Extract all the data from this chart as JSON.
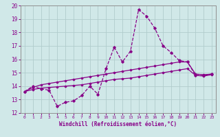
{
  "xlabel": "Windchill (Refroidissement éolien,°C)",
  "ylabel": "",
  "xlim": [
    -0.5,
    23.5
  ],
  "ylim": [
    12,
    20
  ],
  "xticks": [
    0,
    1,
    2,
    3,
    4,
    5,
    6,
    7,
    8,
    9,
    10,
    11,
    12,
    13,
    14,
    15,
    16,
    17,
    18,
    19,
    20,
    21,
    22,
    23
  ],
  "yticks": [
    12,
    13,
    14,
    15,
    16,
    17,
    18,
    19,
    20
  ],
  "background_color": "#d0e8e8",
  "line_color": "#880088",
  "grid_color": "#b0cccc",
  "series": {
    "main": {
      "x": [
        0,
        1,
        2,
        3,
        4,
        5,
        6,
        7,
        8,
        9,
        10,
        11,
        12,
        13,
        14,
        15,
        16,
        17,
        18,
        19,
        20,
        21,
        22,
        23
      ],
      "y": [
        13.6,
        14.0,
        13.8,
        13.7,
        12.5,
        12.8,
        12.9,
        13.3,
        14.0,
        13.4,
        15.3,
        16.9,
        15.8,
        16.6,
        19.7,
        19.2,
        18.3,
        17.0,
        16.5,
        15.9,
        15.8,
        14.8,
        14.8,
        14.9
      ]
    },
    "upper": {
      "x": [
        0,
        1,
        2,
        3,
        4,
        5,
        6,
        7,
        8,
        9,
        10,
        11,
        12,
        13,
        14,
        15,
        16,
        17,
        18,
        19,
        20,
        21,
        22,
        23
      ],
      "y": [
        13.6,
        13.9,
        14.1,
        14.2,
        14.3,
        14.4,
        14.5,
        14.6,
        14.7,
        14.8,
        14.9,
        15.0,
        15.1,
        15.2,
        15.3,
        15.4,
        15.5,
        15.6,
        15.7,
        15.8,
        15.8,
        14.9,
        14.85,
        14.9
      ]
    },
    "lower": {
      "x": [
        0,
        1,
        2,
        3,
        4,
        5,
        6,
        7,
        8,
        9,
        10,
        11,
        12,
        13,
        14,
        15,
        16,
        17,
        18,
        19,
        20,
        21,
        22,
        23
      ],
      "y": [
        13.6,
        13.75,
        13.85,
        13.9,
        13.95,
        14.0,
        14.05,
        14.1,
        14.2,
        14.3,
        14.4,
        14.5,
        14.55,
        14.6,
        14.7,
        14.8,
        14.9,
        15.0,
        15.1,
        15.2,
        15.3,
        14.8,
        14.75,
        14.85
      ]
    }
  }
}
